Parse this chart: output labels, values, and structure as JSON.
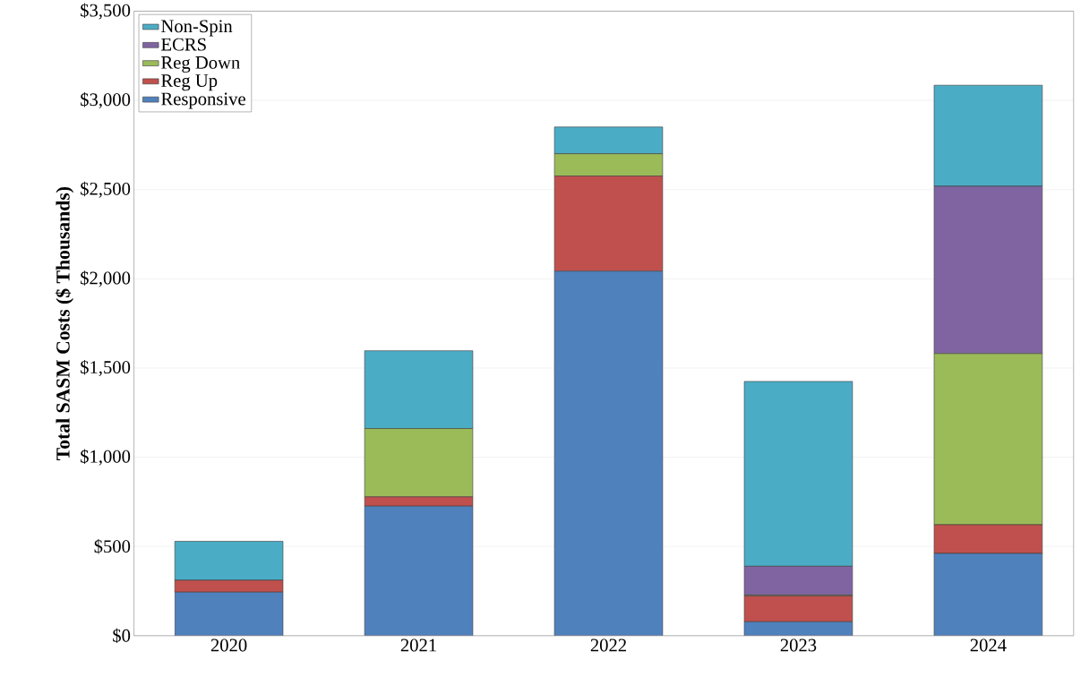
{
  "chart_data": {
    "type": "bar",
    "stacked": true,
    "ylabel": "Total SASM Costs ($ Thousands)",
    "categories": [
      "2020",
      "2021",
      "2022",
      "2023",
      "2024"
    ],
    "series": [
      {
        "name": "Responsive",
        "color": "#4f81bd",
        "values": [
          244,
          726,
          2043,
          78,
          461
        ]
      },
      {
        "name": "Reg Up",
        "color": "#c0504d",
        "values": [
          67,
          52,
          533,
          145,
          161
        ]
      },
      {
        "name": "Reg Down",
        "color": "#9bbb59",
        "values": [
          null,
          383,
          125,
          5,
          959
        ]
      },
      {
        "name": "ECRS",
        "color": "#8064a2",
        "values": [
          null,
          null,
          null,
          161,
          938
        ]
      },
      {
        "name": "Non-Spin",
        "color": "#4bacc6",
        "values": [
          218,
          436,
          150,
          1036,
          566
        ]
      }
    ],
    "ylim": [
      0,
      3500
    ],
    "yticks": [
      {
        "value": 0,
        "label": "$0"
      },
      {
        "value": 500,
        "label": "$500"
      },
      {
        "value": 1000,
        "label": "$1,000"
      },
      {
        "value": 1500,
        "label": "$1,500"
      },
      {
        "value": 2000,
        "label": "$2,000"
      },
      {
        "value": 2500,
        "label": "$2,500"
      },
      {
        "value": 3000,
        "label": "$3,000"
      },
      {
        "value": 3500,
        "label": "$3,500"
      }
    ],
    "grid": "y",
    "legend": "top left"
  }
}
